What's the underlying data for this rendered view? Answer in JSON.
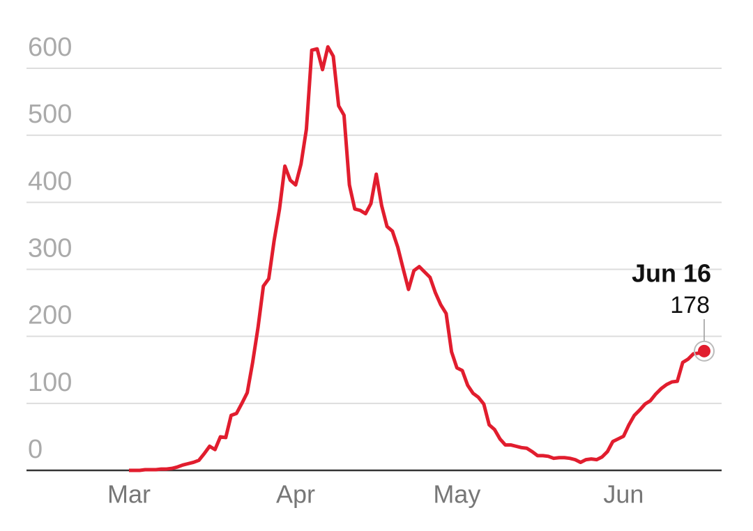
{
  "chart_data": {
    "type": "line",
    "categories": [
      "Mar",
      null,
      null,
      null,
      null,
      null,
      null,
      null,
      null,
      null,
      null,
      null,
      null,
      null,
      null,
      null,
      null,
      null,
      null,
      null,
      null,
      null,
      null,
      null,
      null,
      null,
      null,
      null,
      null,
      null,
      null,
      "Apr",
      null,
      null,
      null,
      null,
      null,
      null,
      null,
      null,
      null,
      null,
      null,
      null,
      null,
      null,
      null,
      null,
      null,
      null,
      null,
      null,
      null,
      null,
      null,
      null,
      null,
      null,
      null,
      null,
      null,
      "May",
      null,
      null,
      null,
      null,
      null,
      null,
      null,
      null,
      null,
      null,
      null,
      null,
      null,
      null,
      null,
      null,
      null,
      null,
      null,
      null,
      null,
      null,
      null,
      null,
      null,
      null,
      null,
      null,
      null,
      null,
      "Jun",
      null,
      null,
      null,
      null,
      null,
      null,
      null,
      null,
      null,
      null,
      null,
      null,
      null,
      null,
      "Jun 16"
    ],
    "series": [
      {
        "color": "#e11d2e",
        "values": [
          0,
          0,
          0,
          1,
          1,
          1,
          2,
          2,
          3,
          5,
          8,
          10,
          12,
          15,
          25,
          36,
          31,
          50,
          49,
          82,
          85,
          100,
          116,
          161,
          213,
          275,
          286,
          343,
          390,
          454,
          433,
          426,
          457,
          509,
          627,
          629,
          598,
          632,
          618,
          544,
          530,
          426,
          390,
          388,
          383,
          398,
          442,
          395,
          364,
          357,
          333,
          301,
          270,
          298,
          304,
          296,
          288,
          265,
          247,
          234,
          177,
          153,
          149,
          127,
          115,
          109,
          99,
          68,
          61,
          47,
          38,
          38,
          36,
          34,
          33,
          28,
          22,
          22,
          21,
          18,
          19,
          19,
          18,
          16,
          12,
          16,
          17,
          16,
          20,
          28,
          43,
          47,
          51,
          68,
          82,
          90,
          99,
          104,
          114,
          122,
          128,
          132,
          133,
          161,
          166,
          174,
          175,
          178
        ]
      }
    ],
    "ylim": [
      0,
      600
    ],
    "yticks": [
      0,
      100,
      200,
      300,
      400,
      500,
      600
    ],
    "grid": true
  }
}
